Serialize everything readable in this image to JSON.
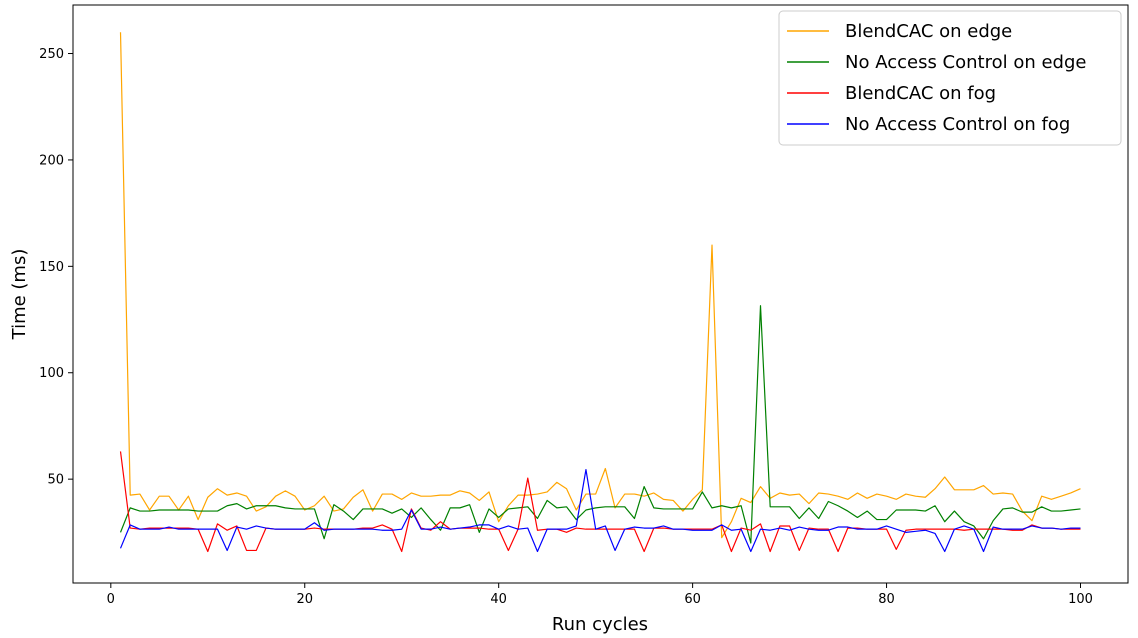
{
  "chart_data": {
    "type": "line",
    "title": "",
    "xlabel": "Run cycles",
    "ylabel": "Time (ms)",
    "xlim": [
      -3.9,
      104.9
    ],
    "ylim": [
      1.2,
      272.8
    ],
    "xticks": [
      0,
      20,
      40,
      60,
      80,
      100
    ],
    "yticks": [
      50,
      100,
      150,
      200,
      250
    ],
    "grid": false,
    "legend_position": "top-right",
    "x": [
      1,
      2,
      3,
      4,
      5,
      6,
      7,
      8,
      9,
      10,
      11,
      12,
      13,
      14,
      15,
      16,
      17,
      18,
      19,
      20,
      21,
      22,
      23,
      24,
      25,
      26,
      27,
      28,
      29,
      30,
      31,
      32,
      33,
      34,
      35,
      36,
      37,
      38,
      39,
      40,
      41,
      42,
      43,
      44,
      45,
      46,
      47,
      48,
      49,
      50,
      51,
      52,
      53,
      54,
      55,
      56,
      57,
      58,
      59,
      60,
      61,
      62,
      63,
      64,
      65,
      66,
      67,
      68,
      69,
      70,
      71,
      72,
      73,
      74,
      75,
      76,
      77,
      78,
      79,
      80,
      81,
      82,
      83,
      84,
      85,
      86,
      87,
      88,
      89,
      90,
      91,
      92,
      93,
      94,
      95,
      96,
      97,
      98,
      99,
      100
    ],
    "series": [
      {
        "name": "BlendCAC on edge",
        "color": "#ffa500",
        "values": [
          260,
          42.5,
          43,
          35.5,
          42,
          42,
          35.5,
          42,
          31,
          41.5,
          45.5,
          42.5,
          43.5,
          42,
          35,
          37,
          42,
          44.5,
          42,
          35.5,
          37.5,
          42,
          35,
          36,
          41.5,
          45,
          35,
          43,
          43,
          40.5,
          43.5,
          42,
          42,
          42.5,
          42.5,
          44.5,
          43.5,
          40,
          44,
          30,
          37.5,
          42.5,
          42.5,
          43,
          44,
          48.5,
          45.5,
          35.5,
          43,
          43,
          55,
          36.5,
          43,
          43,
          42,
          43.5,
          40.5,
          40,
          35,
          40.5,
          45,
          160,
          22.5,
          30,
          41,
          39,
          46.5,
          41,
          43.5,
          42.5,
          43,
          38.5,
          43.5,
          43,
          42,
          40.5,
          43.5,
          41,
          43,
          42,
          40.5,
          43,
          42,
          41.5,
          45.5,
          51,
          45,
          45,
          45,
          47,
          43,
          43.5,
          43,
          35,
          30.5,
          42,
          40.5,
          42,
          43.5,
          45.5
        ]
      },
      {
        "name": "No Access Control on edge",
        "color": "#008000",
        "values": [
          25,
          36.5,
          35,
          35,
          35.5,
          35.5,
          35.5,
          35.5,
          35,
          35,
          35,
          37.5,
          38.5,
          36,
          37.5,
          37.5,
          37.5,
          36.5,
          36,
          36,
          36,
          22,
          38,
          35,
          31,
          36,
          36,
          36,
          34,
          36,
          32,
          36.5,
          31,
          26,
          36.5,
          36.5,
          38,
          25,
          36,
          32,
          36,
          36.5,
          37,
          31.5,
          40,
          36.5,
          37,
          31,
          35.5,
          36.5,
          37,
          37,
          37,
          31.5,
          46.5,
          36.5,
          36,
          36,
          36,
          36,
          44,
          36.5,
          37.5,
          36.5,
          37.5,
          20,
          131.5,
          37,
          37,
          37,
          31.5,
          36.5,
          31.5,
          39.5,
          37.5,
          35,
          32,
          35,
          31,
          31,
          35.5,
          35.5,
          35.5,
          35,
          37.5,
          30,
          35,
          30,
          28,
          22,
          30.5,
          36,
          36.5,
          34.5,
          34.5,
          37,
          35,
          35,
          35.5,
          36
        ]
      },
      {
        "name": "BlendCAC on fog",
        "color": "#ff0000",
        "values": [
          63,
          27,
          26.5,
          27,
          27,
          27,
          27,
          27,
          26.5,
          16,
          29,
          26,
          28,
          16.5,
          16.5,
          27,
          26.5,
          26.5,
          26.5,
          26.5,
          27,
          26.5,
          26.5,
          26.5,
          26.5,
          27,
          27,
          28.5,
          26.5,
          16,
          36,
          27,
          26,
          30,
          26.5,
          27,
          27,
          27,
          26.5,
          26.5,
          16.5,
          26.5,
          50.5,
          26,
          26.5,
          26.5,
          25,
          27,
          26.5,
          26.5,
          26.5,
          26.5,
          26.5,
          26.5,
          16,
          27,
          27,
          26.5,
          26.5,
          26.5,
          26.5,
          26.5,
          28.5,
          16,
          27,
          26,
          29,
          16,
          28,
          28,
          16.5,
          27,
          26.5,
          26.5,
          16,
          27,
          27,
          26.5,
          26.5,
          26.5,
          17,
          26,
          26.5,
          26.5,
          26.5,
          26.5,
          26.5,
          26,
          26.5,
          26.5,
          26.5,
          26.5,
          26,
          26,
          28.5,
          27,
          27,
          26.5,
          26.5,
          26.5
        ]
      },
      {
        "name": "No Access Control on fog",
        "color": "#0000ff",
        "values": [
          17.5,
          28.5,
          26.5,
          26.5,
          26.5,
          27.5,
          26.5,
          26.5,
          26.5,
          26.5,
          26.5,
          16.5,
          27.5,
          26.5,
          28,
          27,
          26.5,
          26.5,
          26.5,
          26.5,
          29.5,
          26,
          26.5,
          26.5,
          26.5,
          26.5,
          26.5,
          26,
          26,
          26.5,
          35.5,
          26.5,
          26.5,
          27.5,
          26.5,
          27,
          27.5,
          28.5,
          28.5,
          26.5,
          28,
          26.5,
          27,
          16,
          26.5,
          26.5,
          26.5,
          28,
          54.5,
          26.5,
          28,
          16.5,
          26.5,
          27.5,
          27,
          27,
          28,
          26.5,
          26.5,
          26,
          26,
          26,
          28.5,
          26,
          26.5,
          16,
          26.5,
          26,
          27,
          26,
          27.5,
          26.5,
          26,
          26,
          27.5,
          27.5,
          26.5,
          26.5,
          26.5,
          28,
          26.5,
          25,
          25.5,
          26,
          24.5,
          16,
          26.5,
          28,
          26.5,
          16,
          27.5,
          26.5,
          26.5,
          26.5,
          28,
          27,
          27,
          26.5,
          27,
          27
        ]
      }
    ]
  }
}
